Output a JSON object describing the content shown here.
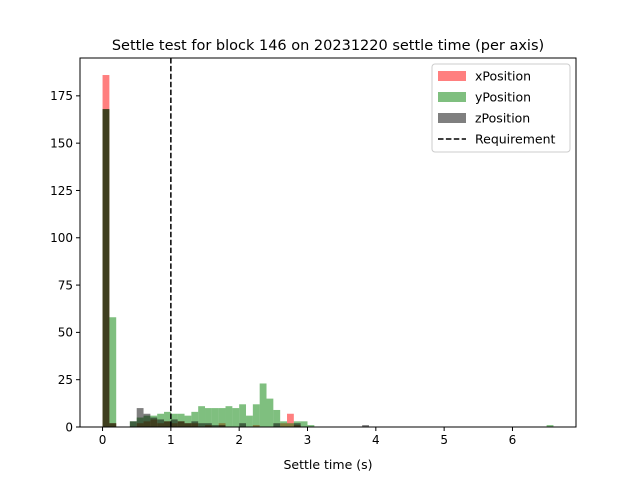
{
  "chart_data": {
    "type": "bar",
    "title": "Settle test for block 146 on 20231220 settle time (per axis)",
    "xlabel": "Settle time (s)",
    "ylabel": "",
    "xlim": [
      -0.33,
      6.93
    ],
    "ylim": [
      0,
      195
    ],
    "x_ticks": [
      0,
      1,
      2,
      3,
      4,
      5,
      6
    ],
    "y_ticks": [
      0,
      25,
      50,
      75,
      100,
      125,
      150,
      175
    ],
    "grid": false,
    "legend_position": "top-right",
    "bin_width": 0.1,
    "requirement": {
      "name": "Requirement",
      "x": 1.0,
      "color": "#000000",
      "style": "dashed"
    },
    "series": [
      {
        "name": "xPosition",
        "color": "#ff0000",
        "opacity": 0.5,
        "bins": [
          [
            0.0,
            186
          ],
          [
            0.1,
            2
          ],
          [
            0.5,
            2
          ],
          [
            0.6,
            3
          ],
          [
            0.7,
            4
          ],
          [
            0.8,
            2
          ],
          [
            0.9,
            3
          ],
          [
            1.0,
            2
          ],
          [
            1.1,
            3
          ],
          [
            1.2,
            2
          ],
          [
            1.3,
            2
          ],
          [
            1.5,
            1
          ],
          [
            1.7,
            2
          ],
          [
            2.2,
            1
          ],
          [
            2.6,
            2
          ],
          [
            2.7,
            7
          ],
          [
            2.8,
            1
          ]
        ]
      },
      {
        "name": "yPosition",
        "color": "#008000",
        "opacity": 0.5,
        "bins": [
          [
            0.0,
            168
          ],
          [
            0.1,
            58
          ],
          [
            0.4,
            3
          ],
          [
            0.5,
            5
          ],
          [
            0.6,
            6
          ],
          [
            0.7,
            6
          ],
          [
            0.8,
            7
          ],
          [
            0.9,
            8
          ],
          [
            1.0,
            7
          ],
          [
            1.1,
            7
          ],
          [
            1.2,
            6
          ],
          [
            1.3,
            8
          ],
          [
            1.4,
            11
          ],
          [
            1.5,
            10
          ],
          [
            1.6,
            10
          ],
          [
            1.7,
            10
          ],
          [
            1.8,
            11
          ],
          [
            1.9,
            10
          ],
          [
            2.0,
            12
          ],
          [
            2.1,
            6
          ],
          [
            2.2,
            12
          ],
          [
            2.3,
            23
          ],
          [
            2.4,
            15
          ],
          [
            2.5,
            9
          ],
          [
            2.6,
            3
          ],
          [
            2.7,
            2
          ],
          [
            2.8,
            3
          ],
          [
            2.9,
            3
          ],
          [
            3.0,
            1
          ],
          [
            6.5,
            1
          ]
        ]
      },
      {
        "name": "zPosition",
        "color": "#000000",
        "opacity": 0.5,
        "bins": [
          [
            0.0,
            168
          ],
          [
            0.1,
            2
          ],
          [
            0.4,
            3
          ],
          [
            0.5,
            10
          ],
          [
            0.6,
            7
          ],
          [
            0.7,
            5
          ],
          [
            0.8,
            4
          ],
          [
            0.9,
            3
          ],
          [
            1.0,
            4
          ],
          [
            1.1,
            3
          ],
          [
            1.2,
            2
          ],
          [
            1.3,
            3
          ],
          [
            1.4,
            2
          ],
          [
            1.5,
            2
          ],
          [
            1.6,
            1
          ],
          [
            1.7,
            1
          ],
          [
            2.0,
            2
          ],
          [
            2.5,
            2
          ],
          [
            2.8,
            2
          ],
          [
            3.8,
            1
          ]
        ]
      }
    ]
  }
}
